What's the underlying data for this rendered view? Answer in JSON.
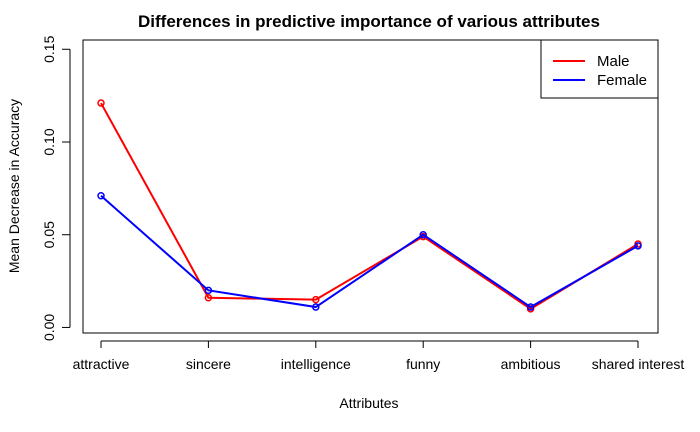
{
  "chart_data": {
    "type": "line",
    "title": "Differences in predictive importance of various attributes",
    "xlabel": "Attributes",
    "ylabel": "Mean Decrease in Accuracy",
    "categories": [
      "attractive",
      "sincere",
      "intelligence",
      "funny",
      "ambitious",
      "shared interest"
    ],
    "yticks": [
      "0.00",
      "0.05",
      "0.10",
      "0.15"
    ],
    "ylim": [
      -0.003,
      0.155
    ],
    "series": [
      {
        "name": "Male",
        "color": "#ff0000",
        "values": [
          0.121,
          0.016,
          0.015,
          0.049,
          0.01,
          0.045
        ]
      },
      {
        "name": "Female",
        "color": "#0000ff",
        "values": [
          0.071,
          0.02,
          0.011,
          0.05,
          0.011,
          0.044
        ]
      }
    ],
    "legend_position": "top-right",
    "grid": false
  }
}
